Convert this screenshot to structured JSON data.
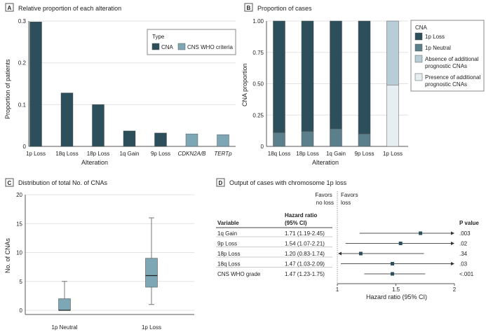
{
  "colors": {
    "cna": "#2d4f5c",
    "who": "#7ea7b5",
    "neutral": "#5c7f8c",
    "absence": "#b9cdd6",
    "presence": "#e6eef1",
    "box": "#7ea7b5",
    "marker": "#2d4f5c"
  },
  "chart_data": [
    {
      "panel": "A",
      "type": "bar",
      "title": "Relative proportion of each alteration",
      "xlabel": "Alteration",
      "ylabel": "Proportion of patients",
      "ylim": [
        0,
        0.3
      ],
      "yticks": [
        "0",
        "0.1",
        "0.2",
        "0.3"
      ],
      "categories": [
        "1p Loss",
        "18q Loss",
        "18p Loss",
        "1q Gain",
        "9p Loss",
        "CDKN2A/B",
        "TERTp"
      ],
      "values": [
        0.298,
        0.128,
        0.1,
        0.037,
        0.032,
        0.03,
        0.028
      ],
      "types": [
        "CNA",
        "CNA",
        "CNA",
        "CNA",
        "CNA",
        "CNS WHO criteria",
        "CNS WHO criteria"
      ],
      "legend": {
        "title": "Type",
        "items": [
          "CNA",
          "CNS WHO criteria"
        ],
        "placement": "top-right"
      }
    },
    {
      "panel": "B",
      "type": "bar",
      "stacked": true,
      "title": "Proportion of cases",
      "xlabel": "Alteration",
      "ylabel": "CNA proportion",
      "ylim": [
        0,
        1
      ],
      "yticks": [
        "0",
        "0.25",
        "0.50",
        "0.75",
        "1.00"
      ],
      "categories": [
        "18q Loss",
        "18p Loss",
        "1q Gain",
        "9p Loss",
        "1p Loss"
      ],
      "series": [
        {
          "name": "1p Neutral",
          "values": [
            0.11,
            0.12,
            0.14,
            0.1,
            0
          ]
        },
        {
          "name": "1p Loss",
          "values": [
            0.89,
            0.88,
            0.86,
            0.9,
            0
          ]
        },
        {
          "name": "Presence of additional prognostic CNAs",
          "values": [
            0,
            0,
            0,
            0,
            0.49
          ]
        },
        {
          "name": "Absence of additional prognostic CNAs",
          "values": [
            0,
            0,
            0,
            0,
            0.51
          ]
        }
      ],
      "legend": {
        "title": "CNA",
        "items": [
          "1p Loss",
          "1p Neutral",
          "Absence of additional prognostic CNAs",
          "Presence of additional prognostic CNAs"
        ],
        "placement": "right"
      }
    },
    {
      "panel": "C",
      "type": "box",
      "title": "Distribution of total No. of CNAs",
      "ylabel": "No. of CNAs",
      "ylim": [
        0,
        20
      ],
      "yticks": [
        "0",
        "5",
        "10",
        "15",
        "20"
      ],
      "categories": [
        "1p Neutral",
        "1p Loss"
      ],
      "boxes": [
        {
          "min": 0,
          "q1": 0,
          "median": 0,
          "q3": 2,
          "max": 5
        },
        {
          "min": 1,
          "q1": 4,
          "median": 6,
          "q3": 9,
          "max": 16
        }
      ]
    },
    {
      "panel": "D",
      "type": "forest",
      "title": "Output of cases with chromosome 1p loss",
      "xlabel": "Hazard ratio (95% CI)",
      "xlim": [
        1,
        2
      ],
      "xticks": [
        "1",
        "1.5",
        "2"
      ],
      "favors_left": "Favors no loss",
      "favors_right": "Favors loss",
      "col_variable": "Variable",
      "col_hr": "Hazard ratio (95% CI)",
      "col_p": "P value",
      "rows": [
        {
          "variable": "1q Gain",
          "hr_text": "1.71 (1.19-2.45)",
          "hr": 1.71,
          "lo": 1.19,
          "hi": 2.45,
          "p": ".003"
        },
        {
          "variable": "9p Loss",
          "hr_text": "1.54 (1.07-2.21)",
          "hr": 1.54,
          "lo": 1.07,
          "hi": 2.21,
          "p": ".02"
        },
        {
          "variable": "18p Loss",
          "hr_text": "1.20 (0.83-1.74)",
          "hr": 1.2,
          "lo": 0.83,
          "hi": 1.74,
          "p": ".34"
        },
        {
          "variable": "18q Loss",
          "hr_text": "1.47 (1.03-2.09)",
          "hr": 1.47,
          "lo": 1.03,
          "hi": 2.09,
          "p": ".03"
        },
        {
          "variable": "CNS WHO grade",
          "hr_text": "1.47 (1.23-1.75)",
          "hr": 1.47,
          "lo": 1.23,
          "hi": 1.75,
          "p": "<.001"
        }
      ]
    }
  ]
}
